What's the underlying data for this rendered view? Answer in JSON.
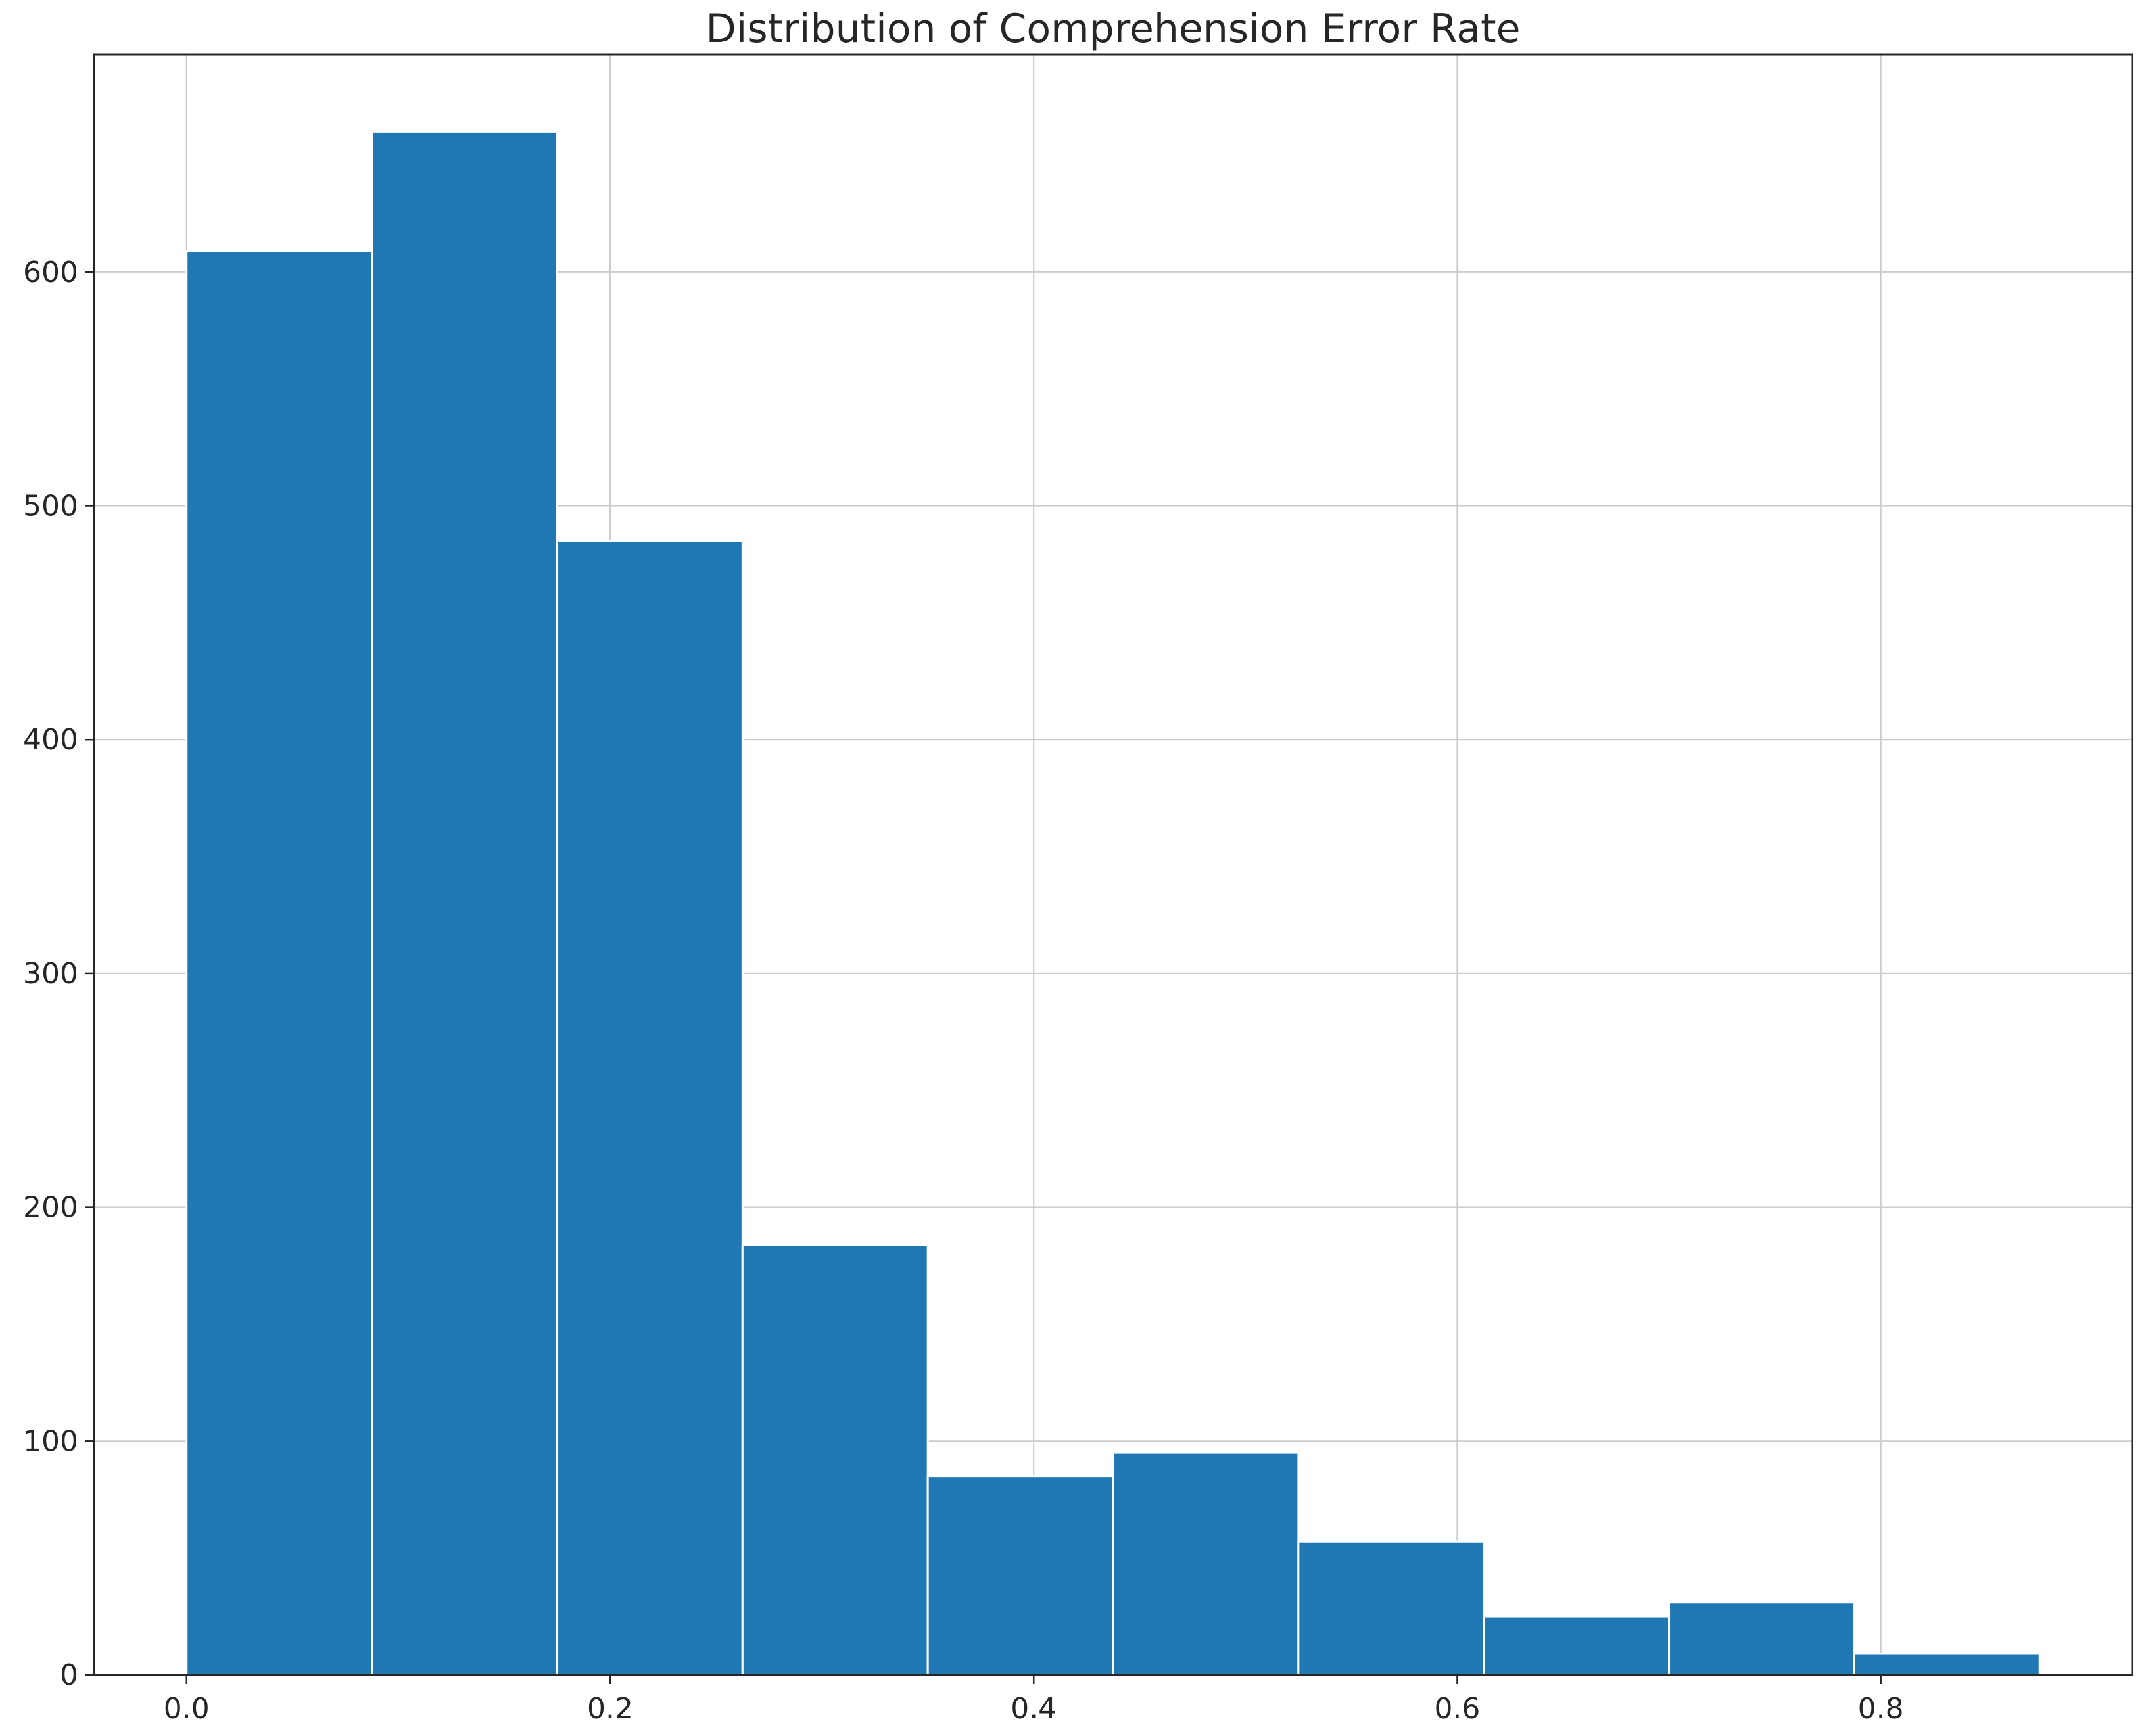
{
  "chart_data": {
    "type": "bar",
    "title": "Distribution of Comprehension Error Rate",
    "xlabel": "",
    "ylabel": "",
    "bin_edges": [
      0.0,
      0.0875,
      0.175,
      0.2625,
      0.35,
      0.4375,
      0.525,
      0.6125,
      0.7,
      0.7875,
      0.875
    ],
    "values": [
      609,
      660,
      485,
      184,
      85,
      95,
      57,
      25,
      31,
      9
    ],
    "xlim": [
      -0.0437,
      0.9187
    ],
    "ylim": [
      0,
      693
    ],
    "xticks": [
      0.0,
      0.2,
      0.4,
      0.6,
      0.8
    ],
    "xtick_labels": [
      "0.0",
      "0.2",
      "0.4",
      "0.6",
      "0.8"
    ],
    "yticks": [
      0,
      100,
      200,
      300,
      400,
      500,
      600
    ],
    "ytick_labels": [
      "0",
      "100",
      "200",
      "300",
      "400",
      "500",
      "600"
    ],
    "grid": true,
    "legend": "none",
    "colors": {
      "bar": "#1f77b4",
      "grid": "#cccccc",
      "frame": "#262626"
    }
  }
}
